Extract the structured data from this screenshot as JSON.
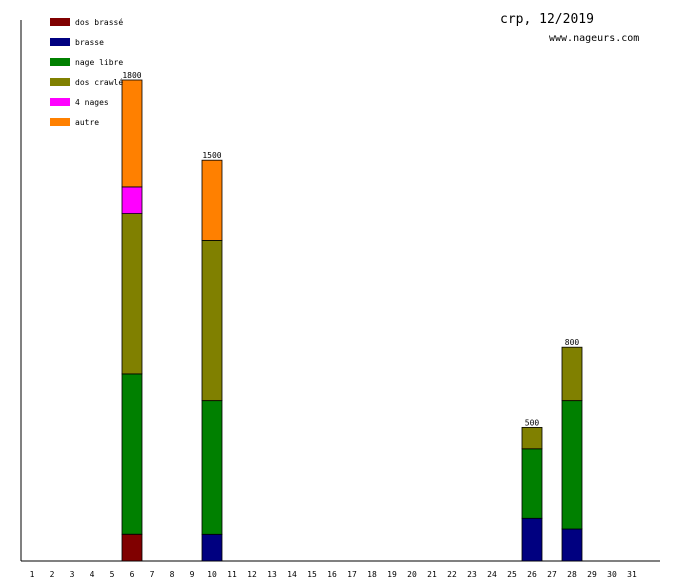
{
  "chart_data": {
    "type": "bar",
    "stacked": true,
    "title": "crp, 12/2019",
    "subtitle": "www.nageurs.com",
    "legend_position": "top-left",
    "grid": false,
    "categories": [
      "1",
      "2",
      "3",
      "4",
      "5",
      "6",
      "7",
      "8",
      "9",
      "10",
      "11",
      "12",
      "13",
      "14",
      "15",
      "16",
      "17",
      "18",
      "19",
      "20",
      "21",
      "22",
      "23",
      "24",
      "25",
      "26",
      "27",
      "28",
      "29",
      "30",
      "31"
    ],
    "ylim": [
      0,
      2000
    ],
    "series": [
      {
        "name": "dos brassé",
        "color": "#800000",
        "values": [
          0,
          0,
          0,
          0,
          0,
          100,
          0,
          0,
          0,
          0,
          0,
          0,
          0,
          0,
          0,
          0,
          0,
          0,
          0,
          0,
          0,
          0,
          0,
          0,
          0,
          0,
          0,
          0,
          0,
          0,
          0
        ]
      },
      {
        "name": "brasse",
        "color": "#000080",
        "values": [
          0,
          0,
          0,
          0,
          0,
          0,
          0,
          0,
          0,
          100,
          0,
          0,
          0,
          0,
          0,
          0,
          0,
          0,
          0,
          0,
          0,
          0,
          0,
          0,
          0,
          160,
          0,
          120,
          0,
          0,
          0
        ]
      },
      {
        "name": "nage libre",
        "color": "#008000",
        "values": [
          0,
          0,
          0,
          0,
          0,
          600,
          0,
          0,
          0,
          500,
          0,
          0,
          0,
          0,
          0,
          0,
          0,
          0,
          0,
          0,
          0,
          0,
          0,
          0,
          0,
          260,
          0,
          480,
          0,
          0,
          0
        ]
      },
      {
        "name": "dos crawlé",
        "color": "#808000",
        "values": [
          0,
          0,
          0,
          0,
          0,
          600,
          0,
          0,
          0,
          600,
          0,
          0,
          0,
          0,
          0,
          0,
          0,
          0,
          0,
          0,
          0,
          0,
          0,
          0,
          0,
          80,
          0,
          200,
          0,
          0,
          0
        ]
      },
      {
        "name": "4 nages",
        "color": "#ff00ff",
        "values": [
          0,
          0,
          0,
          0,
          0,
          100,
          0,
          0,
          0,
          0,
          0,
          0,
          0,
          0,
          0,
          0,
          0,
          0,
          0,
          0,
          0,
          0,
          0,
          0,
          0,
          0,
          0,
          0,
          0,
          0,
          0
        ]
      },
      {
        "name": "autre",
        "color": "#ff8000",
        "values": [
          0,
          0,
          0,
          0,
          0,
          400,
          0,
          0,
          0,
          300,
          0,
          0,
          0,
          0,
          0,
          0,
          0,
          0,
          0,
          0,
          0,
          0,
          0,
          0,
          0,
          0,
          0,
          0,
          0,
          0,
          0
        ]
      }
    ],
    "totals": [
      {
        "day": "6",
        "total": "1800"
      },
      {
        "day": "10",
        "total": "1500"
      },
      {
        "day": "26",
        "total": "500"
      },
      {
        "day": "28",
        "total": "800"
      }
    ]
  }
}
